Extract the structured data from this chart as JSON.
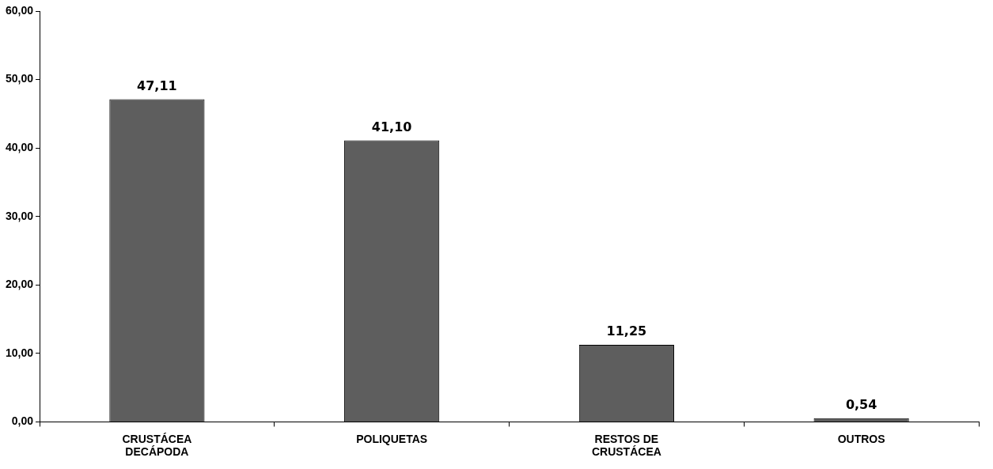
{
  "chart_data": {
    "type": "bar",
    "categories": [
      "CRUSTÁCEA\nDECÁPODA",
      "POLIQUETAS",
      "RESTOS DE\nCRUSTÁCEA",
      "OUTROS"
    ],
    "values": [
      47.11,
      41.1,
      11.25,
      0.54
    ],
    "color": "#5e5e5e",
    "value_labels": [
      "47,11",
      "41,10",
      "11,25",
      "0,54"
    ],
    "ylim": [
      0,
      60
    ],
    "yticks": [
      {
        "value": 0,
        "label": "0,00"
      },
      {
        "value": 10,
        "label": "10,00"
      },
      {
        "value": 20,
        "label": "20,00"
      },
      {
        "value": 30,
        "label": "30,00"
      },
      {
        "value": 40,
        "label": "40,00"
      },
      {
        "value": 50,
        "label": "50,00"
      },
      {
        "value": 60,
        "label": "60,00"
      }
    ],
    "grid": false,
    "legend": false
  }
}
